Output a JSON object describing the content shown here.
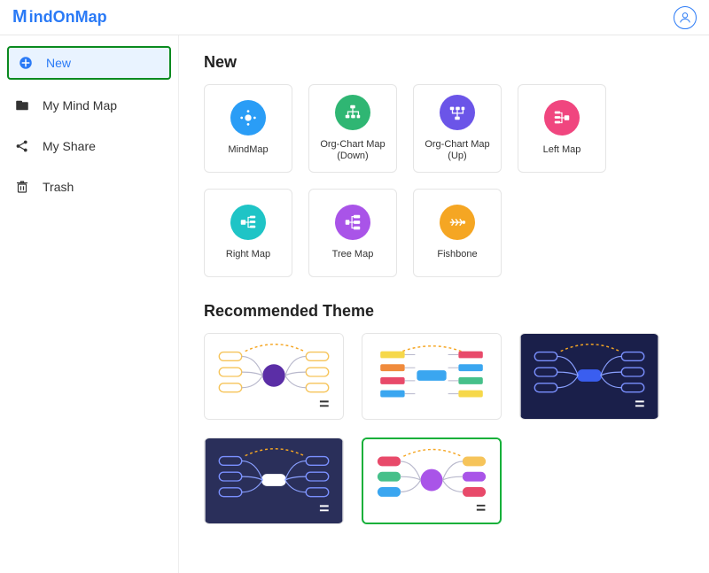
{
  "app": {
    "logo_text": "indOnMap"
  },
  "sidebar": {
    "new_label": "New",
    "items": [
      {
        "label": "My Mind Map"
      },
      {
        "label": "My Share"
      },
      {
        "label": "Trash"
      }
    ]
  },
  "sections": {
    "new_title": "New",
    "recommended_title": "Recommended Theme"
  },
  "templates": [
    {
      "label": "MindMap",
      "color": "#2a9df6",
      "icon": "mindmap"
    },
    {
      "label": "Org-Chart Map (Down)",
      "color": "#2fb673",
      "icon": "orgdown"
    },
    {
      "label": "Org-Chart Map (Up)",
      "color": "#6b55e8",
      "icon": "orgup"
    },
    {
      "label": "Left Map",
      "color": "#f0467f",
      "icon": "leftmap"
    },
    {
      "label": "Right Map",
      "color": "#1fc4c6",
      "icon": "rightmap"
    },
    {
      "label": "Tree Map",
      "color": "#a954e8",
      "icon": "treemap"
    },
    {
      "label": "Fishbone",
      "color": "#f5a623",
      "icon": "fishbone"
    }
  ],
  "themes": [
    {
      "bg": "#ffffff",
      "center": "#5b2ea6",
      "nodes": [
        "#f6c45a",
        "#f08b3c",
        "#5b2ea6"
      ],
      "dark": false,
      "style": "radial",
      "selected": false
    },
    {
      "bg": "#ffffff",
      "center": "#3aa6f0",
      "nodes": [
        "#f6d84a",
        "#f08b3c",
        "#e84a6a",
        "#3aa6f0",
        "#46c08a"
      ],
      "dark": false,
      "style": "bars",
      "selected": false
    },
    {
      "bg": "#1a1f4a",
      "center": "#3a5ef0",
      "nodes": [
        "#3a5ef0",
        "#3a5ef0",
        "#3a5ef0"
      ],
      "dark": true,
      "style": "radial",
      "selected": false
    },
    {
      "bg": "#2a2f5a",
      "center": "#ffffff",
      "nodes": [
        "#3aa6f0",
        "#3aa6f0",
        "#3aa6f0"
      ],
      "dark": true,
      "style": "radial",
      "selected": false
    },
    {
      "bg": "#ffffff",
      "center": "#a954e8",
      "nodes": [
        "#e84a6a",
        "#46c08a",
        "#3aa6f0",
        "#f6c45a",
        "#a954e8"
      ],
      "dark": false,
      "style": "radial-color",
      "selected": true
    }
  ],
  "colors": {
    "brand": "#2a7af6",
    "highlight_border": "#0a8a1f",
    "selected_border": "#16b03a"
  }
}
